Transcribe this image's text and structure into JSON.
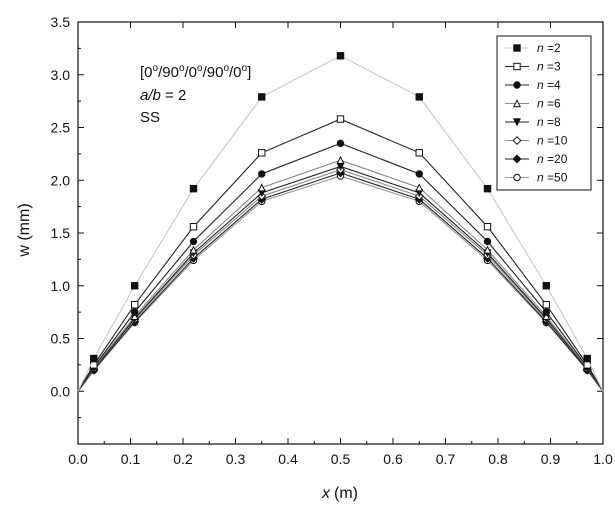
{
  "chart_data": {
    "type": "line",
    "xlabel_var": "x",
    "xlabel_unit": "(m)",
    "ylabel": "w (mm)",
    "xlim": [
      0.0,
      1.0
    ],
    "ylim": [
      -0.5,
      3.5
    ],
    "x_ticks": [
      "0.0",
      "0.1",
      "0.2",
      "0.3",
      "0.4",
      "0.5",
      "0.6",
      "0.7",
      "0.8",
      "0.9",
      "1.0"
    ],
    "y_ticks": [
      "0.0",
      "0.5",
      "1.0",
      "1.5",
      "2.0",
      "2.5",
      "3.0",
      "3.5"
    ],
    "annotation": {
      "layup": "[0°/90°/0°/90°/0°]",
      "ratio_var": "a/b",
      "ratio_val": " = 2",
      "bc": "SS"
    },
    "legend_position": "top-right",
    "x": [
      0.0,
      0.03,
      0.108,
      0.22,
      0.35,
      0.5,
      0.65,
      0.78,
      0.892,
      0.97,
      1.0
    ],
    "series": [
      {
        "name": "n =2",
        "marker": "square-filled",
        "line": "#c8c8c8",
        "values": [
          0.0,
          0.31,
          1.0,
          1.92,
          2.79,
          3.18,
          2.79,
          1.92,
          1.0,
          0.31,
          0.0
        ]
      },
      {
        "name": "n =3",
        "marker": "square-open",
        "line": "#222222",
        "values": [
          0.0,
          0.25,
          0.82,
          1.56,
          2.26,
          2.58,
          2.26,
          1.56,
          0.82,
          0.25,
          0.0
        ]
      },
      {
        "name": "n =4",
        "marker": "circle-filled",
        "line": "#222222",
        "values": [
          0.0,
          0.23,
          0.75,
          1.42,
          2.06,
          2.35,
          2.06,
          1.42,
          0.75,
          0.23,
          0.0
        ]
      },
      {
        "name": "n =6",
        "marker": "triangle-open",
        "line": "#888888",
        "values": [
          0.0,
          0.22,
          0.71,
          1.34,
          1.93,
          2.19,
          1.93,
          1.34,
          0.71,
          0.22,
          0.0
        ]
      },
      {
        "name": "n =8",
        "marker": "triangle-down-filled",
        "line": "#222222",
        "values": [
          0.0,
          0.21,
          0.69,
          1.31,
          1.88,
          2.13,
          1.88,
          1.31,
          0.69,
          0.21,
          0.0
        ]
      },
      {
        "name": "n =10",
        "marker": "diamond-open",
        "line": "#888888",
        "values": [
          0.0,
          0.21,
          0.68,
          1.29,
          1.85,
          2.1,
          1.85,
          1.29,
          0.68,
          0.21,
          0.0
        ]
      },
      {
        "name": "n =20",
        "marker": "diamond-filled",
        "line": "#222222",
        "values": [
          0.0,
          0.2,
          0.66,
          1.26,
          1.82,
          2.07,
          1.82,
          1.26,
          0.66,
          0.2,
          0.0
        ]
      },
      {
        "name": "n =50",
        "marker": "circle-open",
        "line": "#999999",
        "values": [
          0.0,
          0.2,
          0.65,
          1.24,
          1.8,
          2.04,
          1.8,
          1.24,
          0.65,
          0.2,
          0.0
        ]
      }
    ]
  }
}
